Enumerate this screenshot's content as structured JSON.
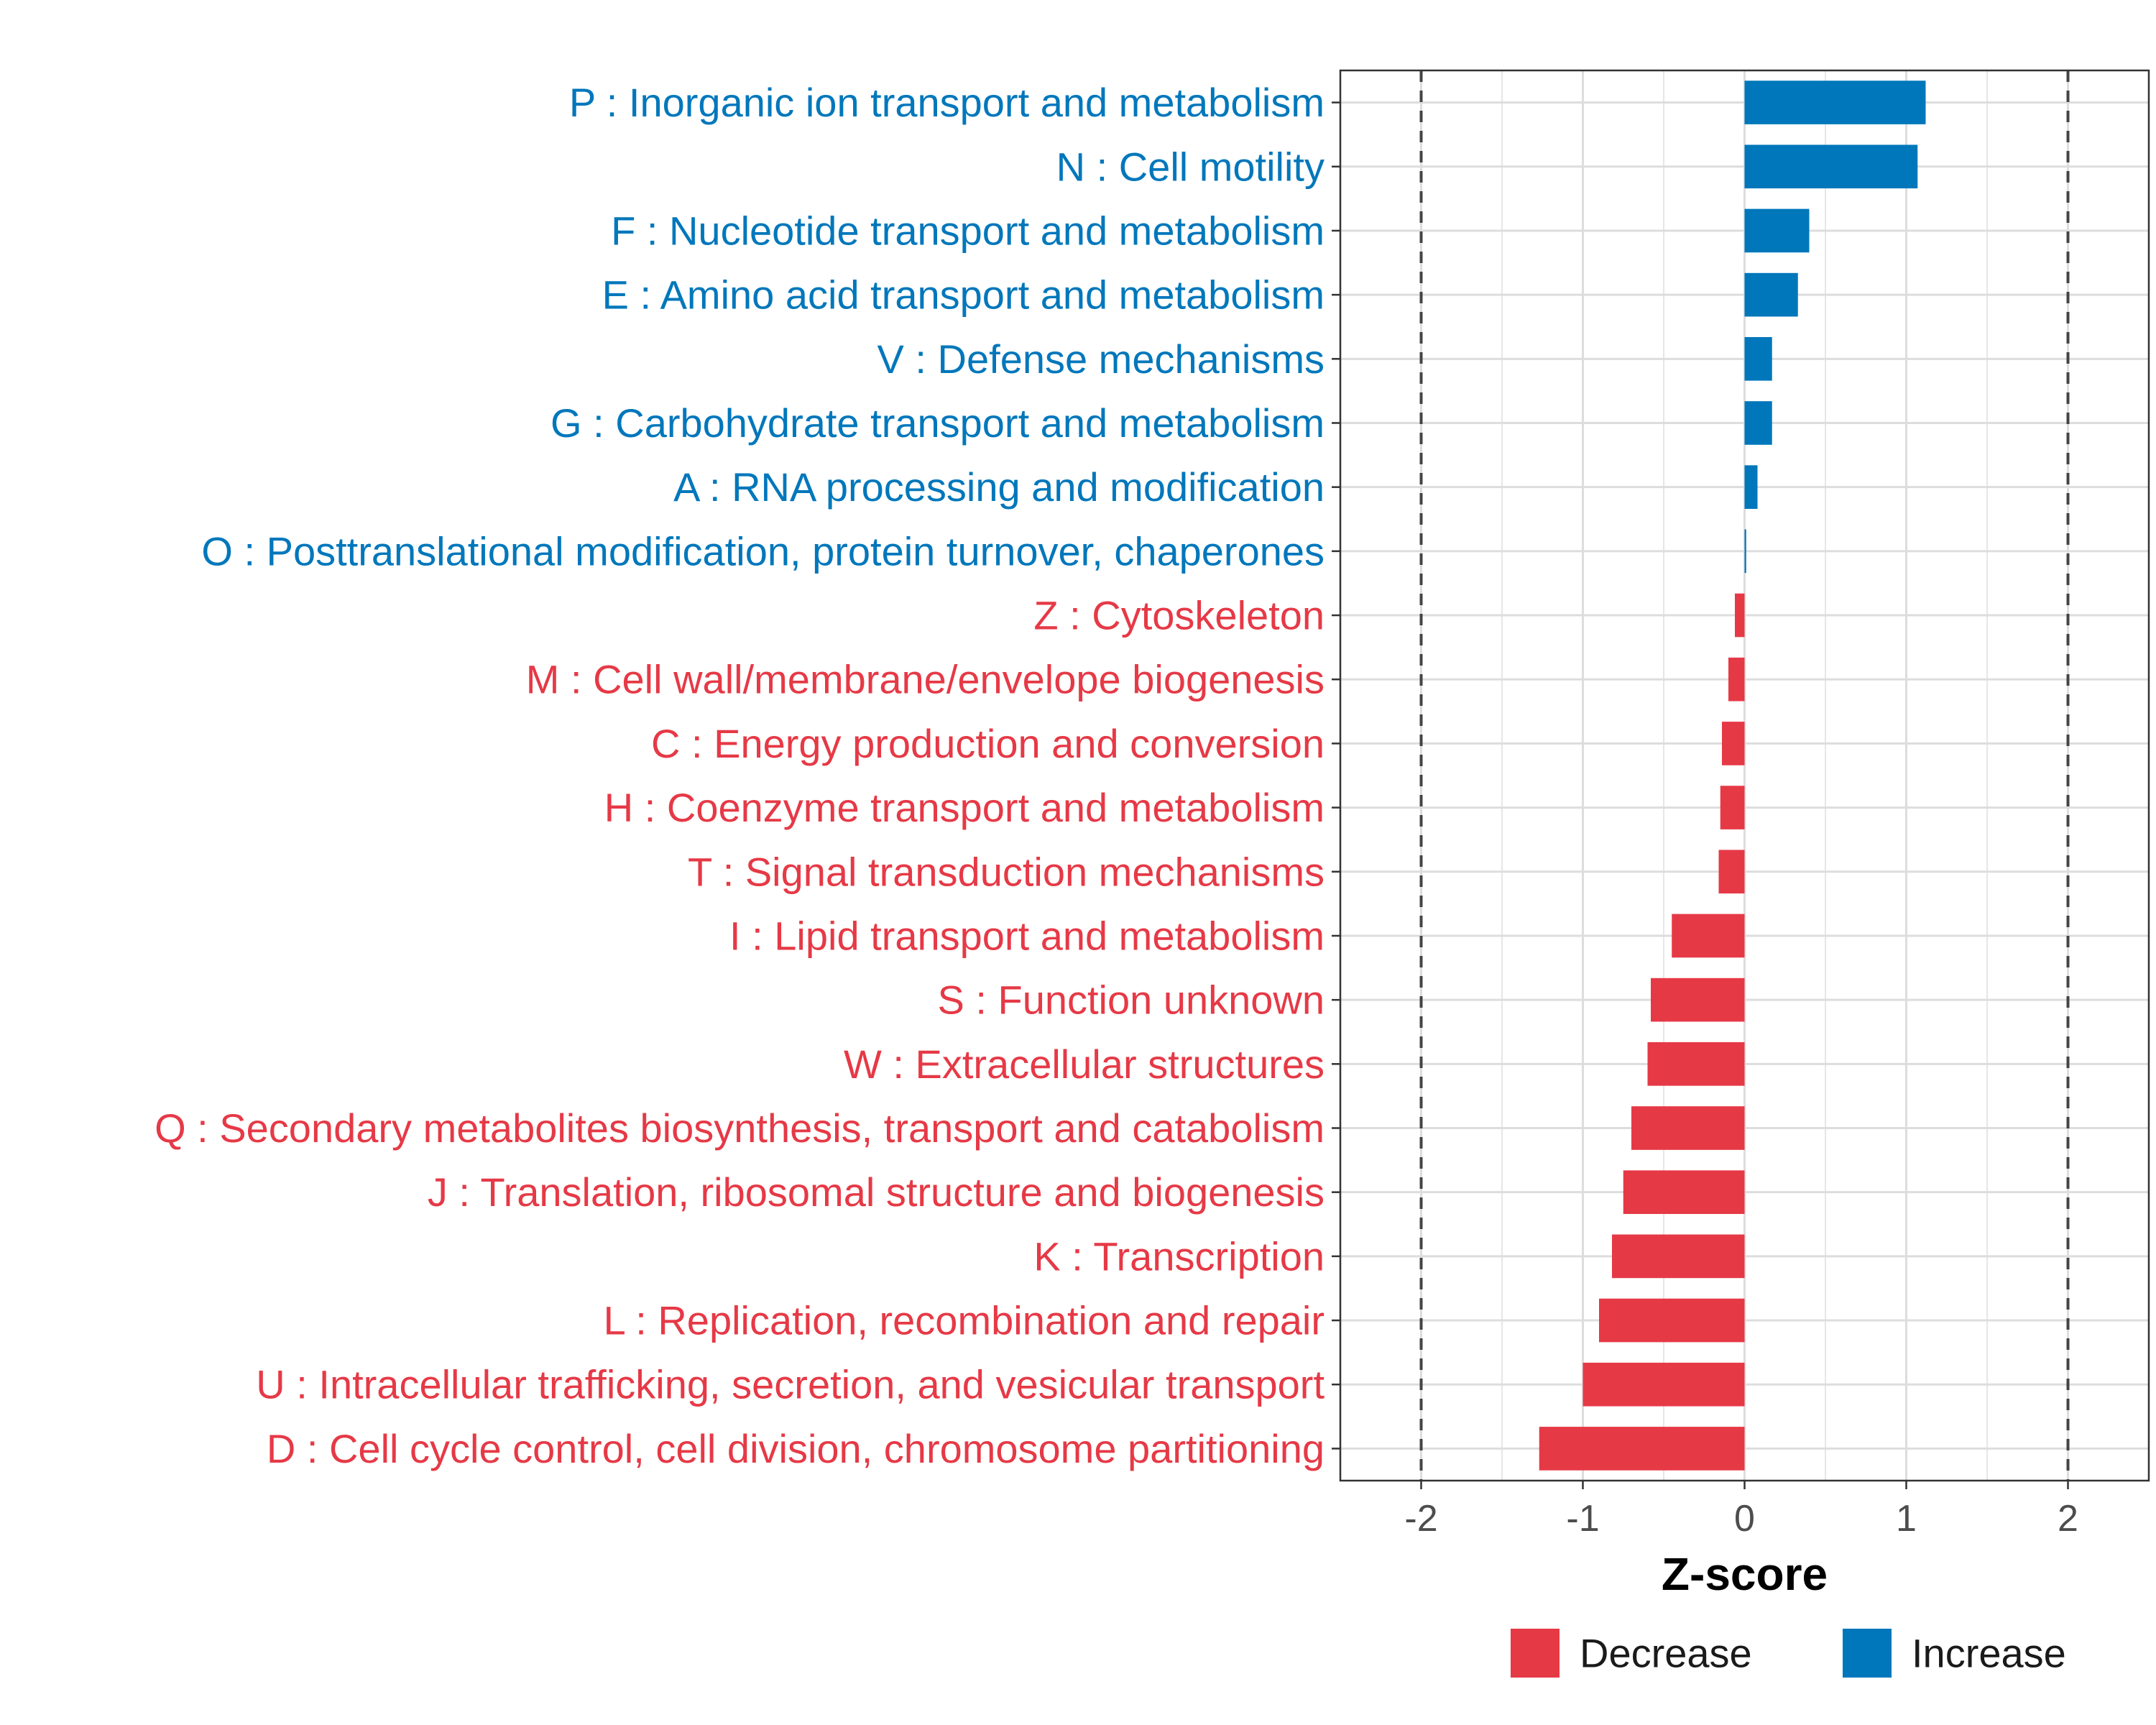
{
  "colors": {
    "increase": "#0077BB",
    "decrease": "#E63946"
  },
  "chart_data": {
    "type": "bar",
    "orientation": "horizontal",
    "xlabel": "Z-score",
    "xlim": [
      -2.5,
      2.5
    ],
    "xticks": [
      -2,
      -1,
      0,
      1,
      2
    ],
    "xtick_labels": [
      "-2",
      "-1",
      "0",
      "1",
      "2"
    ],
    "reference_lines": [
      -2,
      2
    ],
    "legend": {
      "position": "bottom",
      "entries": [
        {
          "label": "Decrease",
          "color": "#E63946"
        },
        {
          "label": "Increase",
          "color": "#0077BB"
        }
      ]
    },
    "categories": [
      "P : Inorganic ion transport and metabolism",
      "N : Cell motility",
      "F : Nucleotide transport and metabolism",
      "E : Amino acid transport and metabolism",
      "V : Defense mechanisms",
      "G : Carbohydrate transport and metabolism",
      "A : RNA processing and modification",
      "O : Posttranslational modification, protein turnover, chaperones",
      "Z : Cytoskeleton",
      "M : Cell wall/membrane/envelope biogenesis",
      "C : Energy production and conversion",
      "H : Coenzyme transport and metabolism",
      "T : Signal transduction mechanisms",
      "I : Lipid transport and metabolism",
      "S : Function unknown",
      "W : Extracellular structures",
      "Q : Secondary metabolites biosynthesis, transport and catabolism",
      "J : Translation, ribosomal structure and biogenesis",
      "K : Transcription",
      "L : Replication, recombination and repair",
      "U : Intracellular trafficking, secretion, and vesicular transport",
      "D : Cell cycle control, cell division, chromosome partitioning"
    ],
    "values": [
      1.12,
      1.07,
      0.4,
      0.33,
      0.17,
      0.17,
      0.08,
      0.01,
      -0.06,
      -0.1,
      -0.14,
      -0.15,
      -0.16,
      -0.45,
      -0.58,
      -0.6,
      -0.7,
      -0.75,
      -0.82,
      -0.9,
      -1.0,
      -1.27
    ],
    "groups": [
      "Increase",
      "Increase",
      "Increase",
      "Increase",
      "Increase",
      "Increase",
      "Increase",
      "Increase",
      "Decrease",
      "Decrease",
      "Decrease",
      "Decrease",
      "Decrease",
      "Decrease",
      "Decrease",
      "Decrease",
      "Decrease",
      "Decrease",
      "Decrease",
      "Decrease",
      "Decrease",
      "Decrease"
    ]
  }
}
